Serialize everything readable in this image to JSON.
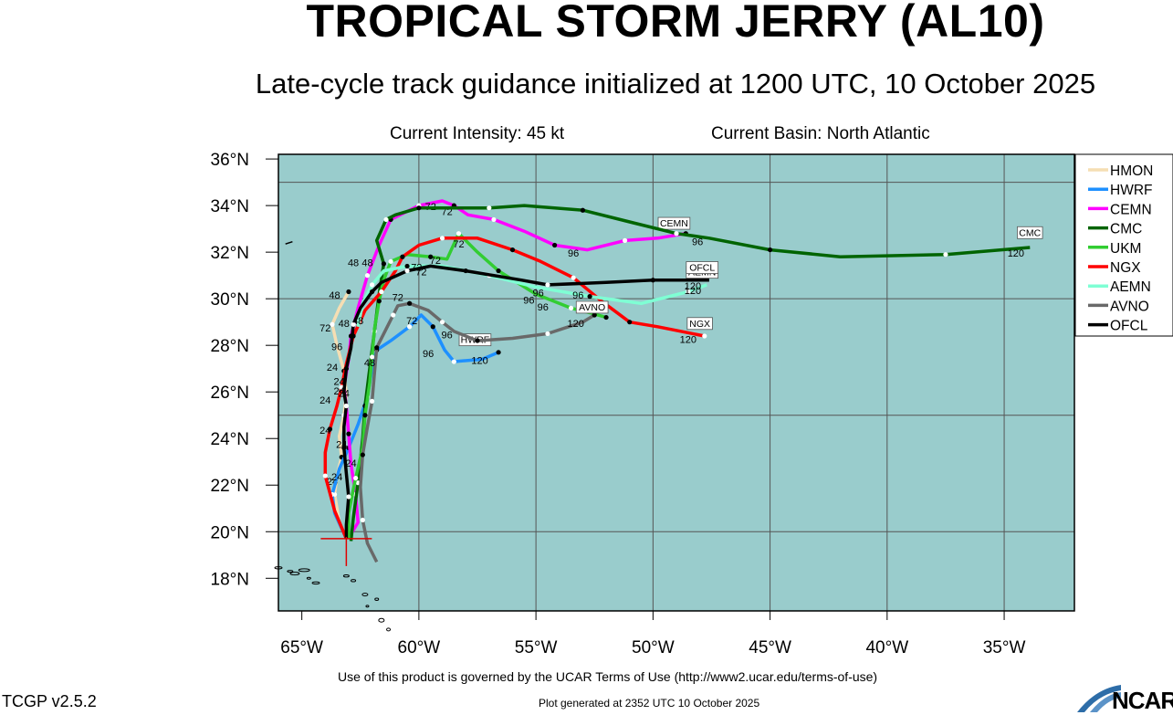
{
  "header": {
    "title": "TROPICAL STORM JERRY (AL10)",
    "subtitle": "Late-cycle track guidance initialized at 1200 UTC, 10 October 2025",
    "current_intensity": "Current Intensity: 45 kt",
    "current_basin": "Current Basin: North Atlantic"
  },
  "footer": {
    "terms": "Use of this product is governed by the UCAR Terms of Use (http://www2.ucar.edu/terms-of-use)",
    "version": "TCGP v2.5.2",
    "generated": "Plot generated at 2352 UTC   10 October 2025",
    "logo_text": "NCAR"
  },
  "map": {
    "ocean_color": "#99cccc",
    "lon_range": [
      -66,
      -32
    ],
    "lat_range": [
      16.6,
      36.2
    ],
    "lon_ticks": [
      {
        "value": -65,
        "label": "65°W"
      },
      {
        "value": -60,
        "label": "60°W"
      },
      {
        "value": -55,
        "label": "55°W"
      },
      {
        "value": -50,
        "label": "50°W"
      },
      {
        "value": -45,
        "label": "45°W"
      },
      {
        "value": -40,
        "label": "40°W"
      },
      {
        "value": -35,
        "label": "35°W"
      }
    ],
    "lat_ticks": [
      {
        "value": 18,
        "label": "18°N"
      },
      {
        "value": 20,
        "label": "20°N"
      },
      {
        "value": 22,
        "label": "22°N"
      },
      {
        "value": 24,
        "label": "24°N"
      },
      {
        "value": 26,
        "label": "26°N"
      },
      {
        "value": 28,
        "label": "28°N"
      },
      {
        "value": 30,
        "label": "30°N"
      },
      {
        "value": 32,
        "label": "32°N"
      },
      {
        "value": 34,
        "label": "34°N"
      },
      {
        "value": 36,
        "label": "36°N"
      }
    ],
    "grid_lons": [
      -60,
      -55,
      -50,
      -45,
      -40,
      -35
    ],
    "grid_lats": [
      20,
      25,
      30,
      35
    ],
    "initial_position": {
      "lon": -63.1,
      "lat": 19.7
    }
  },
  "legend": [
    {
      "name": "HMON",
      "color": "#f5deb3"
    },
    {
      "name": "HWRF",
      "color": "#1e90ff"
    },
    {
      "name": "CEMN",
      "color": "#ff00ff"
    },
    {
      "name": "CMC",
      "color": "#006400"
    },
    {
      "name": "UKM",
      "color": "#32cd32"
    },
    {
      "name": "NGX",
      "color": "#ff0000"
    },
    {
      "name": "AEMN",
      "color": "#7fffd4"
    },
    {
      "name": "AVNO",
      "color": "#696969"
    },
    {
      "name": "OFCL",
      "color": "#000000"
    }
  ],
  "chart_data": {
    "type": "map-tracks",
    "series": [
      {
        "name": "HMON",
        "color": "#f5deb3",
        "points": [
          [
            -63.1,
            19.7
          ],
          [
            -63.4,
            20.4
          ],
          [
            -63.6,
            21.6
          ],
          [
            -63.5,
            22.4
          ],
          [
            -63.3,
            23.2
          ],
          [
            -63.4,
            24.1
          ],
          [
            -63.2,
            25.0
          ],
          [
            -63.1,
            25.9
          ],
          [
            -63.2,
            26.9
          ],
          [
            -63.5,
            28.0
          ],
          [
            -63.7,
            28.9
          ],
          [
            -63.4,
            29.6
          ],
          [
            -63.0,
            30.3
          ]
        ],
        "labels": [
          {
            "text": "24",
            "lon": -63.7,
            "lat": 22.0
          },
          {
            "text": "24",
            "lon": -64.0,
            "lat": 25.5
          }
        ]
      },
      {
        "name": "HWRF",
        "color": "#1e90ff",
        "points": [
          [
            -63.1,
            19.7
          ],
          [
            -63.6,
            20.8
          ],
          [
            -63.7,
            21.6
          ],
          [
            -63.4,
            22.7
          ],
          [
            -63.0,
            23.6
          ],
          [
            -62.6,
            24.6
          ],
          [
            -62.2,
            25.8
          ],
          [
            -62.0,
            27.0
          ],
          [
            -61.8,
            27.8
          ],
          [
            -61.2,
            28.2
          ],
          [
            -60.4,
            28.8
          ],
          [
            -59.9,
            29.3
          ],
          [
            -59.4,
            28.8
          ],
          [
            -58.9,
            27.8
          ],
          [
            -58.5,
            27.3
          ],
          [
            -57.3,
            27.4
          ],
          [
            -56.6,
            27.7
          ]
        ],
        "labels": [
          {
            "text": "96",
            "lon": -59.6,
            "lat": 27.5
          },
          {
            "text": "120",
            "lon": -57.4,
            "lat": 27.2
          }
        ],
        "end_label": {
          "text": "HWRF",
          "lon": -57.6,
          "lat": 28.1
        }
      },
      {
        "name": "CEMN",
        "color": "#ff00ff",
        "points": [
          [
            -62.9,
            19.9
          ],
          [
            -62.6,
            20.4
          ],
          [
            -62.7,
            21.6
          ],
          [
            -62.9,
            22.9
          ],
          [
            -63.0,
            24.2
          ],
          [
            -63.1,
            25.4
          ],
          [
            -63.2,
            26.2
          ],
          [
            -63.0,
            27.4
          ],
          [
            -62.9,
            28.4
          ],
          [
            -62.6,
            29.6
          ],
          [
            -62.2,
            31.0
          ],
          [
            -61.7,
            32.3
          ],
          [
            -61.2,
            33.4
          ],
          [
            -60.8,
            33.6
          ],
          [
            -60.0,
            34.0
          ],
          [
            -59.0,
            34.2
          ],
          [
            -58.5,
            34.0
          ],
          [
            -57.9,
            33.6
          ],
          [
            -56.8,
            33.4
          ],
          [
            -55.5,
            32.9
          ],
          [
            -54.2,
            32.3
          ],
          [
            -52.8,
            32.1
          ],
          [
            -51.2,
            32.5
          ],
          [
            -49.8,
            32.6
          ],
          [
            -48.6,
            32.8
          ]
        ],
        "labels": [
          {
            "text": "72",
            "lon": -59.5,
            "lat": 33.8
          },
          {
            "text": "72",
            "lon": -58.8,
            "lat": 33.6
          },
          {
            "text": "96",
            "lon": -53.4,
            "lat": 31.8
          },
          {
            "text": "48",
            "lon": -62.2,
            "lat": 31.4
          }
        ],
        "end_label": {
          "text": "CEMN",
          "lon": -49.1,
          "lat": 33.1
        }
      },
      {
        "name": "CMC",
        "color": "#006400",
        "points": [
          [
            -62.9,
            19.6
          ],
          [
            -62.8,
            20.6
          ],
          [
            -62.6,
            22.1
          ],
          [
            -62.4,
            24.0
          ],
          [
            -62.3,
            25.4
          ],
          [
            -62.1,
            27.0
          ],
          [
            -61.9,
            28.6
          ],
          [
            -61.7,
            30.2
          ],
          [
            -61.5,
            31.5
          ],
          [
            -61.8,
            32.5
          ],
          [
            -61.4,
            33.4
          ],
          [
            -61.0,
            33.6
          ],
          [
            -60.0,
            33.9
          ],
          [
            -58.8,
            33.9
          ],
          [
            -57.0,
            33.9
          ],
          [
            -55.5,
            34.0
          ],
          [
            -53.0,
            33.8
          ],
          [
            -51.0,
            33.3
          ],
          [
            -49.0,
            32.8
          ],
          [
            -47.6,
            32.6
          ],
          [
            -45.0,
            32.1
          ],
          [
            -42.0,
            31.8
          ],
          [
            -37.5,
            31.9
          ],
          [
            -33.9,
            32.2
          ]
        ],
        "labels": [
          {
            "text": "96",
            "lon": -48.1,
            "lat": 32.3
          },
          {
            "text": "120",
            "lon": -34.5,
            "lat": 31.8
          }
        ],
        "end_label": {
          "text": "CMC",
          "lon": -33.9,
          "lat": 32.7
        }
      },
      {
        "name": "UKM",
        "color": "#32cd32",
        "points": [
          [
            -63.0,
            19.7
          ],
          [
            -63.0,
            20.8
          ],
          [
            -62.7,
            22.3
          ],
          [
            -62.4,
            23.6
          ],
          [
            -62.3,
            25.0
          ],
          [
            -62.1,
            26.4
          ],
          [
            -62.0,
            27.5
          ],
          [
            -61.9,
            28.7
          ],
          [
            -61.7,
            29.9
          ],
          [
            -61.5,
            30.8
          ],
          [
            -61.2,
            31.6
          ],
          [
            -60.5,
            31.9
          ],
          [
            -59.5,
            31.8
          ],
          [
            -58.8,
            31.7
          ],
          [
            -58.3,
            32.8
          ],
          [
            -57.5,
            32.0
          ],
          [
            -56.6,
            31.2
          ],
          [
            -55.0,
            30.2
          ],
          [
            -53.5,
            29.6
          ],
          [
            -52.7,
            29.4
          ],
          [
            -52.0,
            29.2
          ]
        ],
        "labels": [
          {
            "text": "72",
            "lon": -58.3,
            "lat": 32.2
          },
          {
            "text": "96",
            "lon": -54.7,
            "lat": 29.5
          }
        ]
      },
      {
        "name": "NGX",
        "color": "#ff0000",
        "points": [
          [
            -63.1,
            19.7
          ],
          [
            -63.6,
            20.9
          ],
          [
            -64.0,
            22.4
          ],
          [
            -64.0,
            23.4
          ],
          [
            -63.8,
            24.4
          ],
          [
            -63.5,
            25.4
          ],
          [
            -63.3,
            26.2
          ],
          [
            -63.1,
            27.2
          ],
          [
            -62.8,
            28.4
          ],
          [
            -62.3,
            29.5
          ],
          [
            -61.6,
            30.3
          ],
          [
            -61.0,
            31.2
          ],
          [
            -60.7,
            31.8
          ],
          [
            -60.0,
            32.3
          ],
          [
            -59.0,
            32.6
          ],
          [
            -57.5,
            32.6
          ],
          [
            -56.0,
            32.1
          ],
          [
            -54.8,
            31.6
          ],
          [
            -53.4,
            30.9
          ],
          [
            -52.2,
            29.9
          ],
          [
            -51.0,
            29.0
          ],
          [
            -49.8,
            28.8
          ],
          [
            -47.8,
            28.4
          ]
        ],
        "labels": [
          {
            "text": "120",
            "lon": -48.5,
            "lat": 28.1
          }
        ],
        "end_label": {
          "text": "NGX",
          "lon": -48.0,
          "lat": 28.8
        }
      },
      {
        "name": "AEMN",
        "color": "#7fffd4",
        "points": [
          [
            -62.6,
            28.8
          ],
          [
            -62.4,
            29.8
          ],
          [
            -62.0,
            30.6
          ],
          [
            -61.5,
            31.2
          ],
          [
            -60.5,
            31.4
          ],
          [
            -59.0,
            31.4
          ],
          [
            -57.0,
            31.0
          ],
          [
            -55.0,
            30.5
          ],
          [
            -52.7,
            30.1
          ],
          [
            -50.5,
            29.8
          ],
          [
            -48.5,
            30.3
          ],
          [
            -47.7,
            30.6
          ]
        ],
        "labels": [
          {
            "text": "120",
            "lon": -48.3,
            "lat": 30.2
          }
        ],
        "end_label": {
          "text": "AEMN",
          "lon": -47.9,
          "lat": 31.0
        }
      },
      {
        "name": "AVNO",
        "color": "#696969",
        "points": [
          [
            -61.8,
            18.7
          ],
          [
            -62.2,
            19.5
          ],
          [
            -62.4,
            20.5
          ],
          [
            -62.5,
            21.9
          ],
          [
            -62.4,
            23.3
          ],
          [
            -62.2,
            24.5
          ],
          [
            -62.0,
            25.6
          ],
          [
            -61.9,
            26.8
          ],
          [
            -61.8,
            27.9
          ],
          [
            -61.4,
            28.7
          ],
          [
            -61.1,
            29.3
          ],
          [
            -60.9,
            29.7
          ],
          [
            -60.4,
            29.8
          ],
          [
            -59.6,
            29.5
          ],
          [
            -59.0,
            29.0
          ],
          [
            -58.5,
            28.6
          ],
          [
            -57.5,
            28.2
          ],
          [
            -56.0,
            28.3
          ],
          [
            -54.5,
            28.5
          ],
          [
            -53.0,
            29.0
          ],
          [
            -52.5,
            29.3
          ]
        ],
        "labels": [
          {
            "text": "72",
            "lon": -60.3,
            "lat": 28.9
          },
          {
            "text": "96",
            "lon": -58.8,
            "lat": 28.3
          },
          {
            "text": "120",
            "lon": -53.3,
            "lat": 28.8
          }
        ],
        "end_label": {
          "text": "AVNO",
          "lon": -52.6,
          "lat": 29.5
        }
      },
      {
        "name": "OFCL",
        "color": "#000000",
        "points": [
          [
            -63.1,
            19.7
          ],
          [
            -63.1,
            20.3
          ],
          [
            -63.0,
            21.5
          ],
          [
            -63.1,
            22.5
          ],
          [
            -63.2,
            23.6
          ],
          [
            -63.2,
            24.5
          ],
          [
            -63.1,
            25.4
          ],
          [
            -63.2,
            26.0
          ],
          [
            -63.1,
            27.0
          ],
          [
            -62.9,
            27.9
          ],
          [
            -62.8,
            28.9
          ],
          [
            -62.5,
            29.6
          ],
          [
            -62.0,
            30.3
          ],
          [
            -61.6,
            30.7
          ],
          [
            -60.5,
            31.2
          ],
          [
            -59.5,
            31.4
          ],
          [
            -58.0,
            31.2
          ],
          [
            -55.6,
            30.8
          ],
          [
            -54.5,
            30.6
          ],
          [
            -52.0,
            30.7
          ],
          [
            -50.0,
            30.8
          ],
          [
            -47.6,
            30.8
          ]
        ],
        "labels": [
          {
            "text": "72",
            "lon": -59.9,
            "lat": 31.0
          },
          {
            "text": "96",
            "lon": -54.9,
            "lat": 30.1
          },
          {
            "text": "120",
            "lon": -48.3,
            "lat": 30.4
          },
          {
            "text": "48",
            "lon": -62.6,
            "lat": 28.9
          },
          {
            "text": "24",
            "lon": -63.4,
            "lat": 25.9
          }
        ],
        "end_label": {
          "text": "OFCL",
          "lon": -47.9,
          "lat": 31.2
        }
      }
    ],
    "extra_labels": [
      {
        "text": "48",
        "lon": -63.2,
        "lat": 28.8
      },
      {
        "text": "48",
        "lon": -63.6,
        "lat": 30.0
      },
      {
        "text": "24",
        "lon": -63.7,
        "lat": 26.9
      },
      {
        "text": "24",
        "lon": -63.4,
        "lat": 26.3
      },
      {
        "text": "24",
        "lon": -63.2,
        "lat": 25.8
      },
      {
        "text": "24",
        "lon": -64.0,
        "lat": 24.2
      },
      {
        "text": "24",
        "lon": -63.3,
        "lat": 23.6
      },
      {
        "text": "24",
        "lon": -62.9,
        "lat": 22.8
      },
      {
        "text": "24",
        "lon": -63.5,
        "lat": 22.2
      },
      {
        "text": "48",
        "lon": -62.1,
        "lat": 27.1
      },
      {
        "text": "48",
        "lon": -62.8,
        "lat": 31.4
      },
      {
        "text": "72",
        "lon": -64.0,
        "lat": 28.6
      },
      {
        "text": "96",
        "lon": -63.5,
        "lat": 27.8
      },
      {
        "text": "72",
        "lon": -60.9,
        "lat": 29.9
      },
      {
        "text": "72",
        "lon": -60.1,
        "lat": 31.2
      },
      {
        "text": "72",
        "lon": -59.3,
        "lat": 31.5
      },
      {
        "text": "96",
        "lon": -55.3,
        "lat": 29.8
      },
      {
        "text": "96",
        "lon": -53.2,
        "lat": 30.0
      }
    ]
  }
}
